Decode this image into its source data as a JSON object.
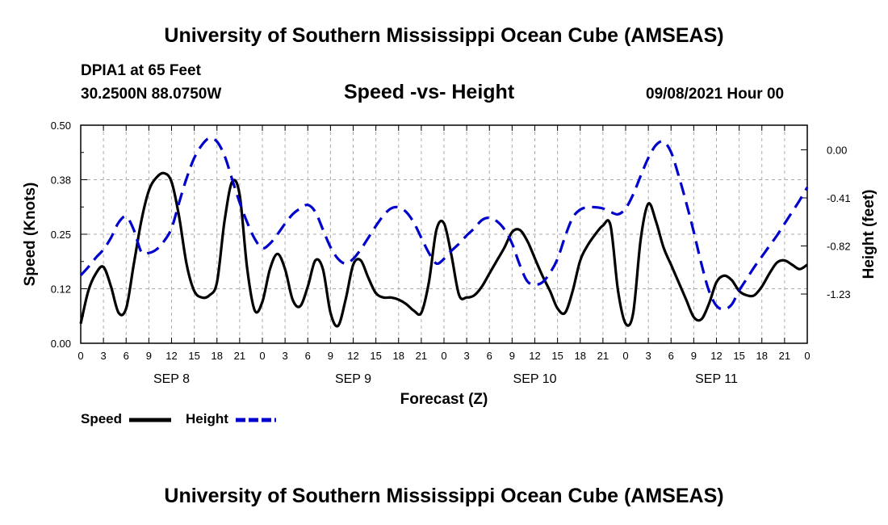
{
  "header": {
    "title_top": "University of Southern Mississippi Ocean Cube (AMSEAS)",
    "title_bottom": "University of Southern Mississippi Ocean Cube (AMSEAS)",
    "station": "DPIA1 at 65 Feet",
    "coords": "30.2500N  88.0750W",
    "datetime": "09/08/2021 Hour 00"
  },
  "colors": {
    "speed": "#000000",
    "height": "#0000cc",
    "grid": "#aaaaaa"
  },
  "legend": {
    "speed_label": "Speed",
    "height_label": "Height"
  },
  "chart_data": {
    "type": "line",
    "title": "Speed -vs- Height",
    "xlabel": "Forecast (Z)",
    "ylabel_left": "Speed (Knots)",
    "ylabel_right": "Height (feet)",
    "x_range_hours": [
      0,
      96
    ],
    "x_tick_labels": [
      "0",
      "3",
      "6",
      "9",
      "12",
      "15",
      "18",
      "21",
      "0",
      "3",
      "6",
      "9",
      "12",
      "15",
      "18",
      "21",
      "0",
      "3",
      "6",
      "9",
      "12",
      "15",
      "18",
      "21",
      "0",
      "3",
      "6",
      "9",
      "12",
      "15",
      "18",
      "21",
      "0"
    ],
    "day_labels": [
      "SEP 8",
      "SEP 9",
      "SEP 10",
      "SEP 11"
    ],
    "day_label_hours": [
      12,
      36,
      60,
      84
    ],
    "ylim_left": [
      0,
      0.5
    ],
    "y_ticks_left": [
      0.0,
      0.125,
      0.25,
      0.375,
      0.5
    ],
    "y_tick_labels_left": [
      "0.00",
      "0.12",
      "0.25",
      "0.38",
      "0.50"
    ],
    "ylim_right": [
      -1.65,
      0.21
    ],
    "y_ticks_right": [
      0.0,
      -0.41,
      -0.82,
      -1.23
    ],
    "y_tick_labels_right": [
      "0.00",
      "-0.41",
      "-0.82",
      "-1.23"
    ],
    "series": [
      {
        "name": "Speed",
        "axis": "left",
        "style": "solid",
        "x": [
          0,
          1,
          2,
          3,
          4,
          5,
          6,
          7,
          8,
          9,
          10,
          11,
          12,
          13,
          14,
          15,
          16,
          17,
          18,
          19,
          20,
          21,
          22,
          23,
          24,
          25,
          26,
          27,
          28,
          29,
          30,
          31,
          32,
          33,
          34,
          35,
          36,
          37,
          38,
          39,
          40,
          41,
          42,
          43,
          44,
          45,
          46,
          47,
          48,
          49,
          50,
          51,
          52,
          53,
          54,
          55,
          56,
          57,
          58,
          59,
          60,
          61,
          62,
          63,
          64,
          65,
          66,
          67,
          68,
          69,
          70,
          71,
          72,
          73,
          74,
          75,
          76,
          77,
          78,
          79,
          80,
          81,
          82,
          83,
          84,
          85,
          86,
          87,
          88,
          89,
          90,
          91,
          92,
          93,
          94,
          95,
          96
        ],
        "values": [
          0.045,
          0.12,
          0.16,
          0.175,
          0.13,
          0.07,
          0.08,
          0.18,
          0.28,
          0.35,
          0.38,
          0.39,
          0.37,
          0.29,
          0.18,
          0.12,
          0.105,
          0.11,
          0.14,
          0.28,
          0.37,
          0.34,
          0.17,
          0.075,
          0.095,
          0.17,
          0.205,
          0.17,
          0.1,
          0.085,
          0.13,
          0.19,
          0.17,
          0.07,
          0.04,
          0.1,
          0.18,
          0.19,
          0.15,
          0.115,
          0.105,
          0.105,
          0.1,
          0.09,
          0.075,
          0.07,
          0.14,
          0.26,
          0.275,
          0.2,
          0.11,
          0.105,
          0.11,
          0.13,
          0.16,
          0.19,
          0.22,
          0.255,
          0.26,
          0.235,
          0.195,
          0.155,
          0.12,
          0.08,
          0.07,
          0.12,
          0.19,
          0.225,
          0.25,
          0.27,
          0.27,
          0.12,
          0.045,
          0.07,
          0.24,
          0.32,
          0.28,
          0.22,
          0.18,
          0.14,
          0.1,
          0.06,
          0.055,
          0.09,
          0.14,
          0.155,
          0.145,
          0.12,
          0.11,
          0.11,
          0.13,
          0.16,
          0.185,
          0.19,
          0.18,
          0.17,
          0.18
        ]
      },
      {
        "name": "Height",
        "axis": "right",
        "style": "dashed",
        "x": [
          0,
          1,
          2,
          3,
          4,
          5,
          6,
          7,
          8,
          9,
          10,
          11,
          12,
          13,
          14,
          15,
          16,
          17,
          18,
          19,
          20,
          21,
          22,
          23,
          24,
          25,
          26,
          27,
          28,
          29,
          30,
          31,
          32,
          33,
          34,
          35,
          36,
          37,
          38,
          39,
          40,
          41,
          42,
          43,
          44,
          45,
          46,
          47,
          48,
          49,
          50,
          51,
          52,
          53,
          54,
          55,
          56,
          57,
          58,
          59,
          60,
          61,
          62,
          63,
          64,
          65,
          66,
          67,
          68,
          69,
          70,
          71,
          72,
          73,
          74,
          75,
          76,
          77,
          78,
          79,
          80,
          81,
          82,
          83,
          84,
          85,
          86,
          87,
          88,
          89,
          90,
          91,
          92,
          93,
          94,
          95,
          96
        ],
        "values": [
          -1.07,
          -1.0,
          -0.92,
          -0.85,
          -0.75,
          -0.62,
          -0.57,
          -0.68,
          -0.87,
          -0.88,
          -0.85,
          -0.78,
          -0.67,
          -0.45,
          -0.24,
          -0.07,
          0.04,
          0.1,
          0.07,
          -0.05,
          -0.25,
          -0.45,
          -0.62,
          -0.76,
          -0.84,
          -0.8,
          -0.72,
          -0.63,
          -0.55,
          -0.5,
          -0.47,
          -0.53,
          -0.68,
          -0.83,
          -0.93,
          -0.97,
          -0.93,
          -0.85,
          -0.75,
          -0.65,
          -0.56,
          -0.5,
          -0.49,
          -0.53,
          -0.62,
          -0.75,
          -0.88,
          -0.97,
          -0.93,
          -0.86,
          -0.8,
          -0.73,
          -0.67,
          -0.6,
          -0.58,
          -0.61,
          -0.68,
          -0.8,
          -0.98,
          -1.12,
          -1.15,
          -1.13,
          -1.05,
          -0.93,
          -0.74,
          -0.58,
          -0.51,
          -0.49,
          -0.49,
          -0.5,
          -0.53,
          -0.55,
          -0.5,
          -0.38,
          -0.22,
          -0.07,
          0.04,
          0.07,
          -0.02,
          -0.22,
          -0.45,
          -0.7,
          -0.97,
          -1.2,
          -1.33,
          -1.36,
          -1.32,
          -1.2,
          -1.1,
          -1.0,
          -0.91,
          -0.82,
          -0.73,
          -0.63,
          -0.53,
          -0.43,
          -0.32
        ]
      }
    ]
  }
}
